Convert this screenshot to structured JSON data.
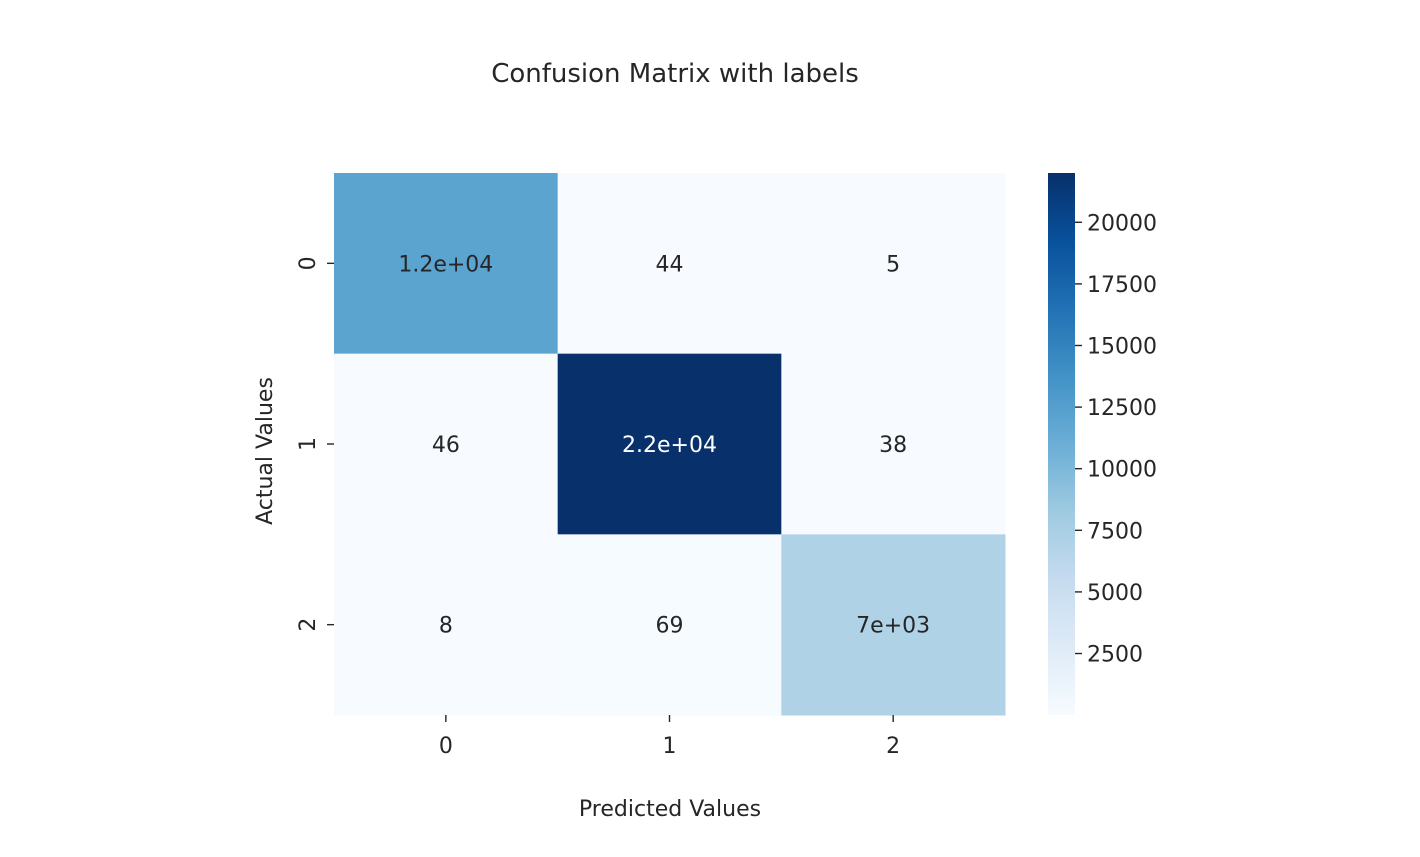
{
  "chart_data": {
    "type": "heatmap",
    "title": "Confusion Matrix with labels",
    "xlabel": "Predicted Values",
    "ylabel": "Actual Values",
    "x_tick_labels": [
      "0",
      "1",
      "2"
    ],
    "y_tick_labels": [
      "0",
      "1",
      "2"
    ],
    "matrix": [
      [
        12000,
        44,
        5
      ],
      [
        46,
        22000,
        38
      ],
      [
        8,
        69,
        7000
      ]
    ],
    "cell_labels": [
      [
        "1.2e+04",
        "44",
        "5"
      ],
      [
        "46",
        "2.2e+04",
        "38"
      ],
      [
        "8",
        "69",
        "7e+03"
      ]
    ],
    "colormap": "Blues",
    "colorbar": {
      "range": [
        5,
        22000
      ],
      "ticks": [
        2500,
        5000,
        7500,
        10000,
        12500,
        15000,
        17500,
        20000
      ],
      "tick_labels": [
        "2500",
        "5000",
        "7500",
        "10000",
        "12500",
        "15000",
        "17500",
        "20000"
      ]
    },
    "grid": false,
    "legend": "none"
  }
}
